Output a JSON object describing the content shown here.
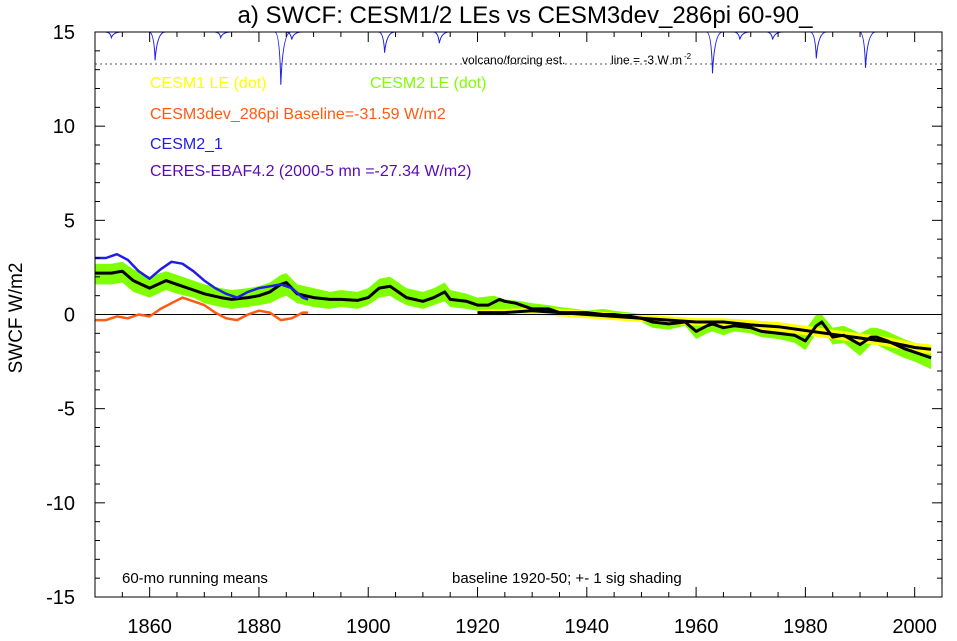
{
  "chart_data": {
    "type": "line",
    "title": "a) SWCF: CESM1/2 LEs vs CESM3dev_286pi 60-90_",
    "ylabel": "SWCF W/m2",
    "xlabel": "",
    "xlim": [
      1850,
      2005
    ],
    "ylim": [
      -15,
      15
    ],
    "x_ticks": [
      1860,
      1880,
      1900,
      1920,
      1940,
      1960,
      1980,
      2000
    ],
    "y_ticks": [
      15,
      10,
      5,
      0,
      -5,
      -10,
      -15
    ],
    "grid": false,
    "zero_line": true,
    "volcano_label": "volcano/forcing est.",
    "volcano_line_label": "line = -3 W m",
    "volcano_line_label_sup": "-2",
    "volcano_baseline": 13.3,
    "legend": [
      {
        "label": "CESM1 LE (dot)",
        "color": "#ffff00"
      },
      {
        "label": "CESM2 LE (dot)",
        "color": "#7fff00"
      },
      {
        "label": "CESM3dev_286pi Baseline=-31.59 W/m2",
        "color": "#ff5a14"
      },
      {
        "label": "CESM2_1",
        "color": "#1e1ee6"
      },
      {
        "label": "CERES-EBAF4.2 (2000-5 mn =-27.34 W/m2)",
        "color": "#5a0ab4"
      }
    ],
    "note_left": "60-mo running means",
    "note_right": "baseline 1920-50; +- 1 sig shading",
    "volcano_dips": [
      {
        "x": 1853,
        "depth": 0.3
      },
      {
        "x": 1861,
        "depth": 1.5
      },
      {
        "x": 1873,
        "depth": 0.3
      },
      {
        "x": 1884,
        "depth": 2.8
      },
      {
        "x": 1886,
        "depth": 0.4
      },
      {
        "x": 1903,
        "depth": 1.1
      },
      {
        "x": 1913,
        "depth": 0.6
      },
      {
        "x": 1963,
        "depth": 2.2
      },
      {
        "x": 1968,
        "depth": 0.4
      },
      {
        "x": 1974,
        "depth": 0.4
      },
      {
        "x": 1982,
        "depth": 1.4
      },
      {
        "x": 1991,
        "depth": 1.9
      }
    ],
    "series": [
      {
        "name": "CESM2 LE (dot)",
        "kind": "band",
        "color": "#7fff00",
        "x": [
          1850,
          1853,
          1855,
          1857,
          1860,
          1863,
          1865,
          1868,
          1870,
          1873,
          1875,
          1878,
          1880,
          1882,
          1884,
          1885,
          1887,
          1890,
          1893,
          1895,
          1898,
          1900,
          1902,
          1904,
          1905,
          1907,
          1910,
          1912,
          1914,
          1915,
          1918,
          1920,
          1923,
          1925,
          1928,
          1930,
          1933,
          1935,
          1938,
          1940,
          1943,
          1945,
          1948,
          1950,
          1952,
          1955,
          1958,
          1960,
          1962,
          1963,
          1965,
          1967,
          1970,
          1972,
          1975,
          1978,
          1980,
          1982,
          1983,
          1985,
          1987,
          1990,
          1992,
          1993,
          1995,
          1998,
          2000,
          2003
        ],
        "lower": [
          1.6,
          1.6,
          1.7,
          1.2,
          0.9,
          1.3,
          1.1,
          0.9,
          0.6,
          0.4,
          0.3,
          0.4,
          0.5,
          0.6,
          0.9,
          1.0,
          0.6,
          0.4,
          0.3,
          0.4,
          0.3,
          0.5,
          0.9,
          1.0,
          0.8,
          0.5,
          0.3,
          0.5,
          0.7,
          0.4,
          0.3,
          0.2,
          0.3,
          0.2,
          0.2,
          0.1,
          0.0,
          -0.1,
          -0.1,
          -0.1,
          -0.2,
          -0.2,
          -0.3,
          -0.4,
          -0.7,
          -0.8,
          -0.6,
          -1.3,
          -1.0,
          -0.9,
          -1.1,
          -0.9,
          -1.0,
          -1.2,
          -1.3,
          -1.5,
          -1.9,
          -1.0,
          -0.7,
          -1.6,
          -1.5,
          -2.2,
          -1.6,
          -1.6,
          -1.9,
          -2.3,
          -2.5,
          -2.9
        ],
        "upper": [
          2.7,
          2.7,
          2.8,
          2.4,
          2.0,
          2.3,
          2.1,
          1.8,
          1.6,
          1.4,
          1.3,
          1.4,
          1.5,
          1.7,
          2.1,
          2.2,
          1.6,
          1.4,
          1.2,
          1.3,
          1.2,
          1.4,
          1.9,
          2.0,
          1.8,
          1.4,
          1.2,
          1.4,
          1.7,
          1.3,
          1.1,
          0.9,
          1.0,
          0.8,
          0.7,
          0.6,
          0.5,
          0.4,
          0.3,
          0.2,
          0.3,
          0.2,
          0.1,
          0.0,
          -0.1,
          -0.2,
          -0.2,
          -0.4,
          -0.3,
          -0.2,
          -0.3,
          -0.3,
          -0.4,
          -0.5,
          -0.6,
          -0.7,
          -0.8,
          0.0,
          0.0,
          -0.7,
          -0.6,
          -1.0,
          -0.7,
          -0.7,
          -0.9,
          -1.3,
          -1.5,
          -1.9
        ]
      },
      {
        "name": "CESM1 LE (dot)",
        "kind": "band",
        "color": "#ffff00",
        "x": [
          1920,
          1925,
          1930,
          1935,
          1940,
          1945,
          1950,
          1955,
          1960,
          1965,
          1970,
          1975,
          1980,
          1985,
          1990,
          1995,
          2000,
          2003
        ],
        "lower": [
          -0.05,
          -0.05,
          0.0,
          -0.1,
          -0.2,
          -0.3,
          -0.4,
          -0.5,
          -0.6,
          -0.6,
          -0.8,
          -0.9,
          -1.1,
          -1.3,
          -1.5,
          -1.7,
          -2.0,
          -2.1
        ],
        "upper": [
          0.25,
          0.3,
          0.35,
          0.3,
          0.2,
          0.1,
          0.0,
          -0.1,
          -0.2,
          -0.2,
          -0.3,
          -0.4,
          -0.6,
          -0.8,
          -1.0,
          -1.2,
          -1.5,
          -1.6
        ]
      },
      {
        "name": "CESM1 LE mean",
        "kind": "line",
        "color": "#000000",
        "x": [
          1920,
          1925,
          1930,
          1935,
          1940,
          1945,
          1950,
          1955,
          1960,
          1965,
          1970,
          1975,
          1980,
          1985,
          1990,
          1995,
          2000,
          2003
        ],
        "y": [
          0.1,
          0.1,
          0.2,
          0.1,
          0.0,
          -0.1,
          -0.2,
          -0.3,
          -0.4,
          -0.4,
          -0.55,
          -0.65,
          -0.85,
          -1.05,
          -1.25,
          -1.45,
          -1.75,
          -1.85
        ]
      },
      {
        "name": "CESM2 LE mean",
        "kind": "line",
        "color": "#000000",
        "x": [
          1850,
          1853,
          1855,
          1857,
          1860,
          1863,
          1865,
          1868,
          1870,
          1873,
          1875,
          1878,
          1880,
          1882,
          1884,
          1885,
          1887,
          1890,
          1893,
          1895,
          1898,
          1900,
          1902,
          1904,
          1905,
          1907,
          1910,
          1912,
          1914,
          1915,
          1918,
          1920,
          1922,
          1924,
          1925,
          1927,
          1930,
          1933,
          1935,
          1938,
          1940,
          1943,
          1945,
          1948,
          1950,
          1952,
          1955,
          1958,
          1960,
          1962,
          1963,
          1965,
          1967,
          1970,
          1972,
          1975,
          1978,
          1980,
          1982,
          1983,
          1985,
          1987,
          1990,
          1992,
          1993,
          1995,
          1998,
          2000,
          2003
        ],
        "y": [
          2.2,
          2.2,
          2.3,
          1.8,
          1.4,
          1.8,
          1.6,
          1.3,
          1.1,
          0.9,
          0.8,
          0.9,
          1.0,
          1.2,
          1.6,
          1.7,
          1.1,
          0.9,
          0.8,
          0.8,
          0.75,
          0.9,
          1.4,
          1.5,
          1.3,
          0.9,
          0.7,
          0.9,
          1.2,
          0.8,
          0.7,
          0.5,
          0.5,
          0.8,
          0.7,
          0.6,
          0.3,
          0.3,
          0.1,
          0.1,
          0.1,
          0.0,
          0.0,
          -0.1,
          -0.2,
          -0.4,
          -0.5,
          -0.4,
          -0.9,
          -0.6,
          -0.5,
          -0.7,
          -0.6,
          -0.7,
          -0.9,
          -1.0,
          -1.1,
          -1.4,
          -0.6,
          -0.4,
          -1.2,
          -1.1,
          -1.6,
          -1.2,
          -1.2,
          -1.4,
          -1.8,
          -2.0,
          -2.3
        ]
      },
      {
        "name": "CESM2_1",
        "kind": "line",
        "color": "#1e1ee6",
        "x": [
          1850,
          1852,
          1854,
          1856,
          1858,
          1860,
          1862,
          1864,
          1866,
          1868,
          1870,
          1872,
          1874,
          1876,
          1878,
          1880,
          1882,
          1884,
          1886,
          1888,
          1889
        ],
        "y": [
          3.0,
          3.0,
          3.2,
          2.9,
          2.3,
          1.9,
          2.4,
          2.8,
          2.7,
          2.3,
          1.8,
          1.4,
          1.1,
          0.9,
          1.2,
          1.4,
          1.5,
          1.6,
          1.4,
          0.9,
          0.8
        ]
      },
      {
        "name": "CESM3dev_286pi",
        "kind": "line",
        "color": "#ff5a14",
        "x": [
          1850,
          1852,
          1854,
          1856,
          1858,
          1860,
          1862,
          1864,
          1866,
          1868,
          1870,
          1872,
          1874,
          1876,
          1878,
          1880,
          1882,
          1884,
          1886,
          1888,
          1889
        ],
        "y": [
          -0.3,
          -0.3,
          -0.1,
          -0.2,
          0.0,
          -0.1,
          0.3,
          0.6,
          0.9,
          0.7,
          0.5,
          0.1,
          -0.2,
          -0.3,
          0.0,
          0.2,
          0.1,
          -0.3,
          -0.2,
          0.1,
          0.1
        ]
      }
    ]
  }
}
